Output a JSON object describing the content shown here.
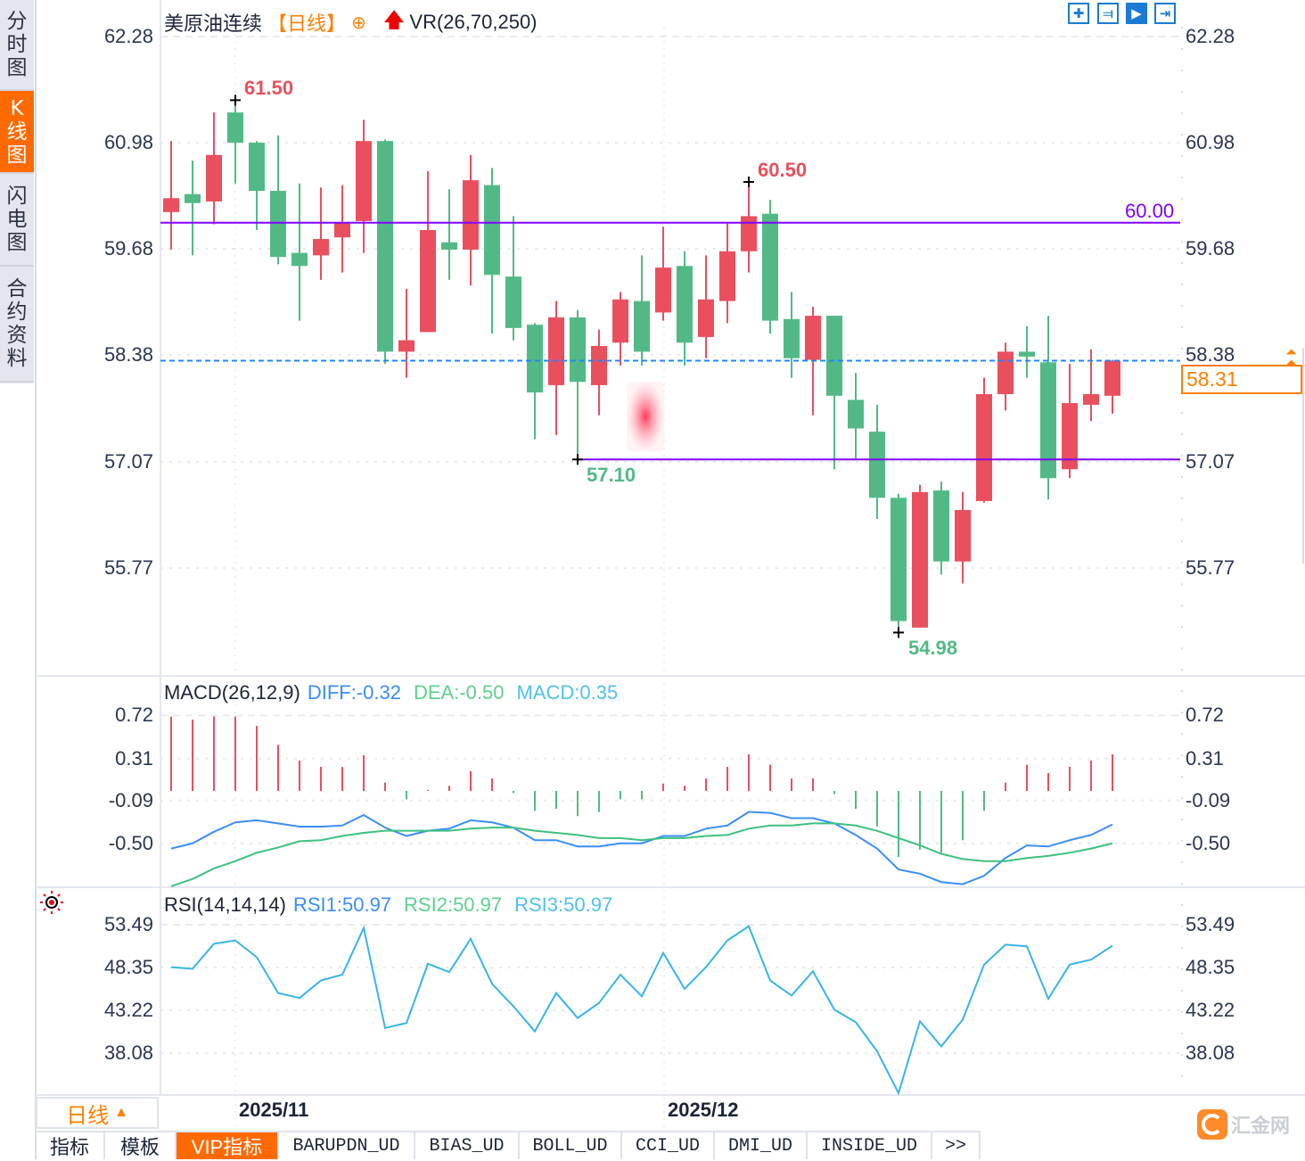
{
  "sidebar": {
    "tabs": [
      {
        "label": [
          "分",
          "时",
          "图"
        ],
        "active": false
      },
      {
        "label": [
          "K",
          "线",
          "图"
        ],
        "active": true
      },
      {
        "label": [
          "闪",
          "电",
          "图"
        ],
        "active": false
      },
      {
        "label": [
          "合",
          "约",
          "资",
          "料"
        ],
        "active": false
      }
    ]
  },
  "header": {
    "symbol": "美原油连续",
    "period": "【日线】",
    "indicator": "VR(26,70,250)"
  },
  "toolbar": {
    "icons": [
      "crosshair-icon",
      "range-select-icon",
      "play-forward-icon",
      "jump-to-end-icon"
    ],
    "active_index": 2
  },
  "colors": {
    "up": "#e94f5d",
    "down": "#52b986",
    "level": "#8000ff",
    "last": "#1e88ff",
    "diff": "#3a8ef5",
    "dea": "#3dc07f",
    "rsi": "#38b4e8",
    "accent": "#ff7f00"
  },
  "main": {
    "level_high_label": "60.00",
    "current_price": "58.31",
    "annotations": {
      "high1": "61.50",
      "high2": "60.50",
      "low1": "57.10",
      "low2": "54.98"
    }
  },
  "macd": {
    "title": "MACD(26,12,9)",
    "diff": "DIFF:-0.32",
    "dea": "DEA:-0.50",
    "macd": "MACD:0.35"
  },
  "rsi": {
    "title": "RSI(14,14,14)",
    "rsi1": "RSI1:50.97",
    "rsi2": "RSI2:50.97",
    "rsi3": "RSI3:50.97"
  },
  "x_axis": {
    "labels": [
      {
        "text": "2025/11",
        "index": 3
      },
      {
        "text": "2025/12",
        "index": 23
      }
    ]
  },
  "bottom": {
    "period_label": "日线",
    "tabs": [
      {
        "label": "指标",
        "mono": false,
        "active": false
      },
      {
        "label": "模板",
        "mono": false,
        "active": false
      },
      {
        "label": "VIP指标",
        "mono": false,
        "active": true
      },
      {
        "label": "BARUPDN_UD",
        "mono": true,
        "active": false
      },
      {
        "label": "BIAS_UD",
        "mono": true,
        "active": false
      },
      {
        "label": "BOLL_UD",
        "mono": true,
        "active": false
      },
      {
        "label": "CCI_UD",
        "mono": true,
        "active": false
      },
      {
        "label": "DMI_UD",
        "mono": true,
        "active": false
      },
      {
        "label": "INSIDE_UD",
        "mono": true,
        "active": false
      },
      {
        "label": ">>",
        "mono": true,
        "active": false
      }
    ],
    "logo": "汇金网"
  },
  "chart_data": [
    {
      "type": "candlestick",
      "title": "美原油连续 日线",
      "ohlc_fields": [
        "open",
        "high",
        "low",
        "close"
      ],
      "candles": [
        [
          60.13,
          61.0,
          59.67,
          60.3
        ],
        [
          60.35,
          60.76,
          59.6,
          60.24
        ],
        [
          60.26,
          61.35,
          59.98,
          60.83
        ],
        [
          61.35,
          61.5,
          60.48,
          60.98
        ],
        [
          60.98,
          61.0,
          59.91,
          60.39
        ],
        [
          60.39,
          61.07,
          59.49,
          59.58
        ],
        [
          59.63,
          60.48,
          58.8,
          59.47
        ],
        [
          59.6,
          60.43,
          59.3,
          59.8
        ],
        [
          59.82,
          60.46,
          59.39,
          60.0
        ],
        [
          60.02,
          61.26,
          59.63,
          61.0
        ],
        [
          61.0,
          61.02,
          58.27,
          58.42
        ],
        [
          58.42,
          59.19,
          58.1,
          58.56
        ],
        [
          58.66,
          60.63,
          58.66,
          59.91
        ],
        [
          59.76,
          60.41,
          59.3,
          59.67
        ],
        [
          59.67,
          60.83,
          59.23,
          60.52
        ],
        [
          60.46,
          60.67,
          58.64,
          59.36
        ],
        [
          59.34,
          60.08,
          58.56,
          58.71
        ],
        [
          58.75,
          58.77,
          57.35,
          57.92
        ],
        [
          58.01,
          59.04,
          57.4,
          58.84
        ],
        [
          58.84,
          58.93,
          57.1,
          58.05
        ],
        [
          58.01,
          58.69,
          57.64,
          58.49
        ],
        [
          58.53,
          59.15,
          58.25,
          59.06
        ],
        [
          59.04,
          59.6,
          58.25,
          58.42
        ],
        [
          58.9,
          59.95,
          58.8,
          59.45
        ],
        [
          59.47,
          59.65,
          58.25,
          58.53
        ],
        [
          58.6,
          59.6,
          58.34,
          59.06
        ],
        [
          59.04,
          59.99,
          58.77,
          59.65
        ],
        [
          59.65,
          60.5,
          59.39,
          60.08
        ],
        [
          60.11,
          60.28,
          58.64,
          58.8
        ],
        [
          58.82,
          59.15,
          58.1,
          58.34
        ],
        [
          58.32,
          58.97,
          57.64,
          58.86
        ],
        [
          58.86,
          58.86,
          56.98,
          57.88
        ],
        [
          57.83,
          58.16,
          57.11,
          57.48
        ],
        [
          57.44,
          57.77,
          56.37,
          56.63
        ],
        [
          56.63,
          56.68,
          54.98,
          55.12
        ],
        [
          55.04,
          56.79,
          55.04,
          56.7
        ],
        [
          56.72,
          56.83,
          55.69,
          55.85
        ],
        [
          55.85,
          56.7,
          55.58,
          56.48
        ],
        [
          56.59,
          58.1,
          56.57,
          57.9
        ],
        [
          57.9,
          58.53,
          57.7,
          58.42
        ],
        [
          58.42,
          58.73,
          58.1,
          58.36
        ],
        [
          58.29,
          58.86,
          56.61,
          56.87
        ],
        [
          56.98,
          58.27,
          56.87,
          57.79
        ],
        [
          57.77,
          58.45,
          57.57,
          57.9
        ],
        [
          57.88,
          58.32,
          57.66,
          58.31
        ]
      ],
      "yticks": [
        "62.28",
        "60.98",
        "59.68",
        "58.38",
        "57.07",
        "55.77"
      ],
      "ylim": [
        54.6,
        62.28
      ],
      "horizontal_lines": [
        {
          "value": 60.0,
          "label": "60.00",
          "from_index": 0
        },
        {
          "value": 57.1,
          "from_index": 19
        }
      ],
      "last_price": 58.31,
      "x_labels": [
        "2025/11",
        "2025/12"
      ]
    },
    {
      "type": "bar+line",
      "title": "MACD(26,12,9)",
      "yticks": [
        "0.72",
        "0.31",
        "-0.09",
        "-0.50"
      ],
      "series": [
        {
          "name": "MACD",
          "type": "bar",
          "values": [
            0.71,
            0.68,
            0.71,
            0.71,
            0.62,
            0.44,
            0.29,
            0.23,
            0.23,
            0.34,
            0.08,
            -0.08,
            0.01,
            0.05,
            0.19,
            0.12,
            -0.02,
            -0.19,
            -0.17,
            -0.24,
            -0.2,
            -0.08,
            -0.08,
            0.07,
            0.05,
            0.12,
            0.23,
            0.35,
            0.25,
            0.12,
            0.12,
            -0.03,
            -0.17,
            -0.34,
            -0.63,
            -0.56,
            -0.59,
            -0.47,
            -0.19,
            0.08,
            0.25,
            0.17,
            0.23,
            0.29,
            0.35
          ]
        },
        {
          "name": "DIFF",
          "type": "line",
          "values": [
            -0.55,
            -0.5,
            -0.39,
            -0.3,
            -0.28,
            -0.31,
            -0.34,
            -0.34,
            -0.33,
            -0.23,
            -0.35,
            -0.43,
            -0.38,
            -0.36,
            -0.28,
            -0.3,
            -0.35,
            -0.47,
            -0.47,
            -0.53,
            -0.53,
            -0.5,
            -0.5,
            -0.43,
            -0.43,
            -0.36,
            -0.33,
            -0.2,
            -0.21,
            -0.26,
            -0.26,
            -0.31,
            -0.42,
            -0.55,
            -0.75,
            -0.79,
            -0.87,
            -0.89,
            -0.81,
            -0.64,
            -0.52,
            -0.53,
            -0.47,
            -0.42,
            -0.32
          ]
        },
        {
          "name": "DEA",
          "type": "line",
          "values": [
            -0.91,
            -0.84,
            -0.74,
            -0.67,
            -0.59,
            -0.54,
            -0.48,
            -0.47,
            -0.43,
            -0.4,
            -0.38,
            -0.38,
            -0.38,
            -0.38,
            -0.36,
            -0.35,
            -0.35,
            -0.38,
            -0.4,
            -0.42,
            -0.45,
            -0.45,
            -0.47,
            -0.45,
            -0.45,
            -0.43,
            -0.42,
            -0.36,
            -0.33,
            -0.33,
            -0.31,
            -0.31,
            -0.33,
            -0.38,
            -0.45,
            -0.52,
            -0.6,
            -0.65,
            -0.67,
            -0.67,
            -0.64,
            -0.62,
            -0.59,
            -0.55,
            -0.5
          ]
        }
      ]
    },
    {
      "type": "line",
      "title": "RSI(14,14,14)",
      "yticks": [
        "53.49",
        "48.35",
        "43.22",
        "38.08"
      ],
      "series": [
        {
          "name": "RSI1",
          "values": [
            48.4,
            48.2,
            51.2,
            51.6,
            49.6,
            45.3,
            44.7,
            46.8,
            47.5,
            53.1,
            41.1,
            41.7,
            48.8,
            47.8,
            51.8,
            46.4,
            43.7,
            40.7,
            45.3,
            42.3,
            44.1,
            47.5,
            44.9,
            50.1,
            45.8,
            48.4,
            51.6,
            53.3,
            46.8,
            45.0,
            47.9,
            43.3,
            41.8,
            38.3,
            33.3,
            41.9,
            38.9,
            42.1,
            48.7,
            51.1,
            50.9,
            44.6,
            48.7,
            49.3,
            50.97
          ]
        }
      ]
    }
  ]
}
